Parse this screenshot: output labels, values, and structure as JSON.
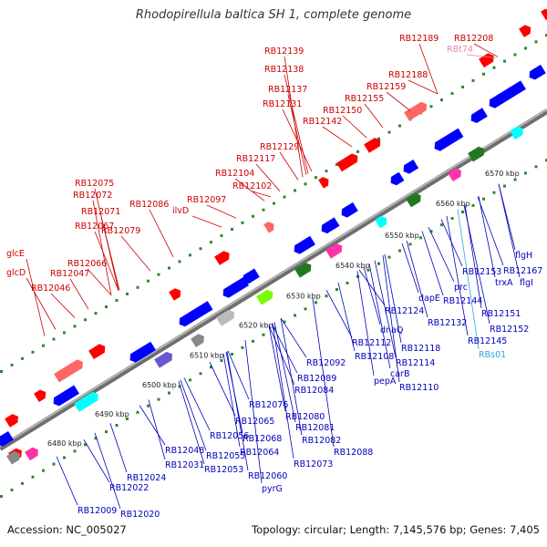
{
  "title": "Rhodopirellula baltica SH 1, complete genome",
  "accession": "Accession: NC_005027",
  "topology": "Topology: circular; Length: 7,145,576 bp; Genes: 7,405",
  "colors": {
    "top_label": "#cc0000",
    "bottom_label": "#0000bb",
    "forward_gene": "#ff0000",
    "reverse_gene": "#0000ff",
    "rna_label": "#e08ab0",
    "trna_label": "#2aa8e0",
    "backbone": "#888888",
    "tick_marks": "#2a8a2a"
  },
  "kbp_ticks": [
    "6480 kbp",
    "6490 kbp",
    "6500 kbp",
    "6510 kbp",
    "6520 kbp",
    "6530 kbp",
    "6540 kbp",
    "6550 kbp",
    "6560 kbp",
    "6570 kbp"
  ],
  "top_labels": [
    {
      "text": "RB12189",
      "kind": "gene"
    },
    {
      "text": "RB12208",
      "kind": "gene"
    },
    {
      "text": "RBt74",
      "kind": "rna"
    },
    {
      "text": "RB12139",
      "kind": "gene"
    },
    {
      "text": "RB12138",
      "kind": "gene"
    },
    {
      "text": "RB12188",
      "kind": "gene"
    },
    {
      "text": "RB12137",
      "kind": "gene"
    },
    {
      "text": "RB12159",
      "kind": "gene"
    },
    {
      "text": "RB12131",
      "kind": "gene"
    },
    {
      "text": "RB12155",
      "kind": "gene"
    },
    {
      "text": "RB12150",
      "kind": "gene"
    },
    {
      "text": "RB12142",
      "kind": "gene"
    },
    {
      "text": "RB12129",
      "kind": "gene"
    },
    {
      "text": "RB12117",
      "kind": "gene"
    },
    {
      "text": "RB12104",
      "kind": "gene"
    },
    {
      "text": "RB12102",
      "kind": "gene"
    },
    {
      "text": "RB12075",
      "kind": "gene"
    },
    {
      "text": "RB12097",
      "kind": "gene"
    },
    {
      "text": "RB12072",
      "kind": "gene"
    },
    {
      "text": "RB12086",
      "kind": "gene"
    },
    {
      "text": "ilvD",
      "kind": "gene"
    },
    {
      "text": "RB12071",
      "kind": "gene"
    },
    {
      "text": "RB12067",
      "kind": "gene"
    },
    {
      "text": "RB12079",
      "kind": "gene"
    },
    {
      "text": "glcE",
      "kind": "gene"
    },
    {
      "text": "RB12066",
      "kind": "gene"
    },
    {
      "text": "glcD",
      "kind": "gene"
    },
    {
      "text": "RB12047",
      "kind": "gene"
    },
    {
      "text": "RB12046",
      "kind": "gene"
    }
  ],
  "bottom_labels": [
    {
      "text": "flgH",
      "kind": "gene"
    },
    {
      "text": "RB12153",
      "kind": "gene"
    },
    {
      "text": "RB12167",
      "kind": "gene"
    },
    {
      "text": "trxA",
      "kind": "gene"
    },
    {
      "text": "flgI",
      "kind": "gene"
    },
    {
      "text": "prc",
      "kind": "gene"
    },
    {
      "text": "dapE",
      "kind": "gene"
    },
    {
      "text": "RB12144",
      "kind": "gene"
    },
    {
      "text": "RB12124",
      "kind": "gene"
    },
    {
      "text": "RB12151",
      "kind": "gene"
    },
    {
      "text": "RB12132",
      "kind": "gene"
    },
    {
      "text": "RB12152",
      "kind": "gene"
    },
    {
      "text": "dnaQ",
      "kind": "gene"
    },
    {
      "text": "RB12145",
      "kind": "gene"
    },
    {
      "text": "RB12112",
      "kind": "gene"
    },
    {
      "text": "RB12118",
      "kind": "gene"
    },
    {
      "text": "RBs01",
      "kind": "trna"
    },
    {
      "text": "RB12092",
      "kind": "gene"
    },
    {
      "text": "RB12108",
      "kind": "gene"
    },
    {
      "text": "RB12114",
      "kind": "gene"
    },
    {
      "text": "RB12089",
      "kind": "gene"
    },
    {
      "text": "pepA",
      "kind": "gene"
    },
    {
      "text": "carB",
      "kind": "gene"
    },
    {
      "text": "RB12084",
      "kind": "gene"
    },
    {
      "text": "RB12110",
      "kind": "gene"
    },
    {
      "text": "RB12076",
      "kind": "gene"
    },
    {
      "text": "RB12065",
      "kind": "gene"
    },
    {
      "text": "RB12080",
      "kind": "gene"
    },
    {
      "text": "RB12081",
      "kind": "gene"
    },
    {
      "text": "RB12056",
      "kind": "gene"
    },
    {
      "text": "RB12068",
      "kind": "gene"
    },
    {
      "text": "RB12082",
      "kind": "gene"
    },
    {
      "text": "RB12048",
      "kind": "gene"
    },
    {
      "text": "RB12064",
      "kind": "gene"
    },
    {
      "text": "RB12088",
      "kind": "gene"
    },
    {
      "text": "RB12055",
      "kind": "gene"
    },
    {
      "text": "RB12031",
      "kind": "gene"
    },
    {
      "text": "RB12073",
      "kind": "gene"
    },
    {
      "text": "RB12053",
      "kind": "gene"
    },
    {
      "text": "RB12024",
      "kind": "gene"
    },
    {
      "text": "RB12060",
      "kind": "gene"
    },
    {
      "text": "RB12022",
      "kind": "gene"
    },
    {
      "text": "pyrG",
      "kind": "gene"
    },
    {
      "text": "RB12009",
      "kind": "gene"
    },
    {
      "text": "RB12020",
      "kind": "gene"
    }
  ]
}
